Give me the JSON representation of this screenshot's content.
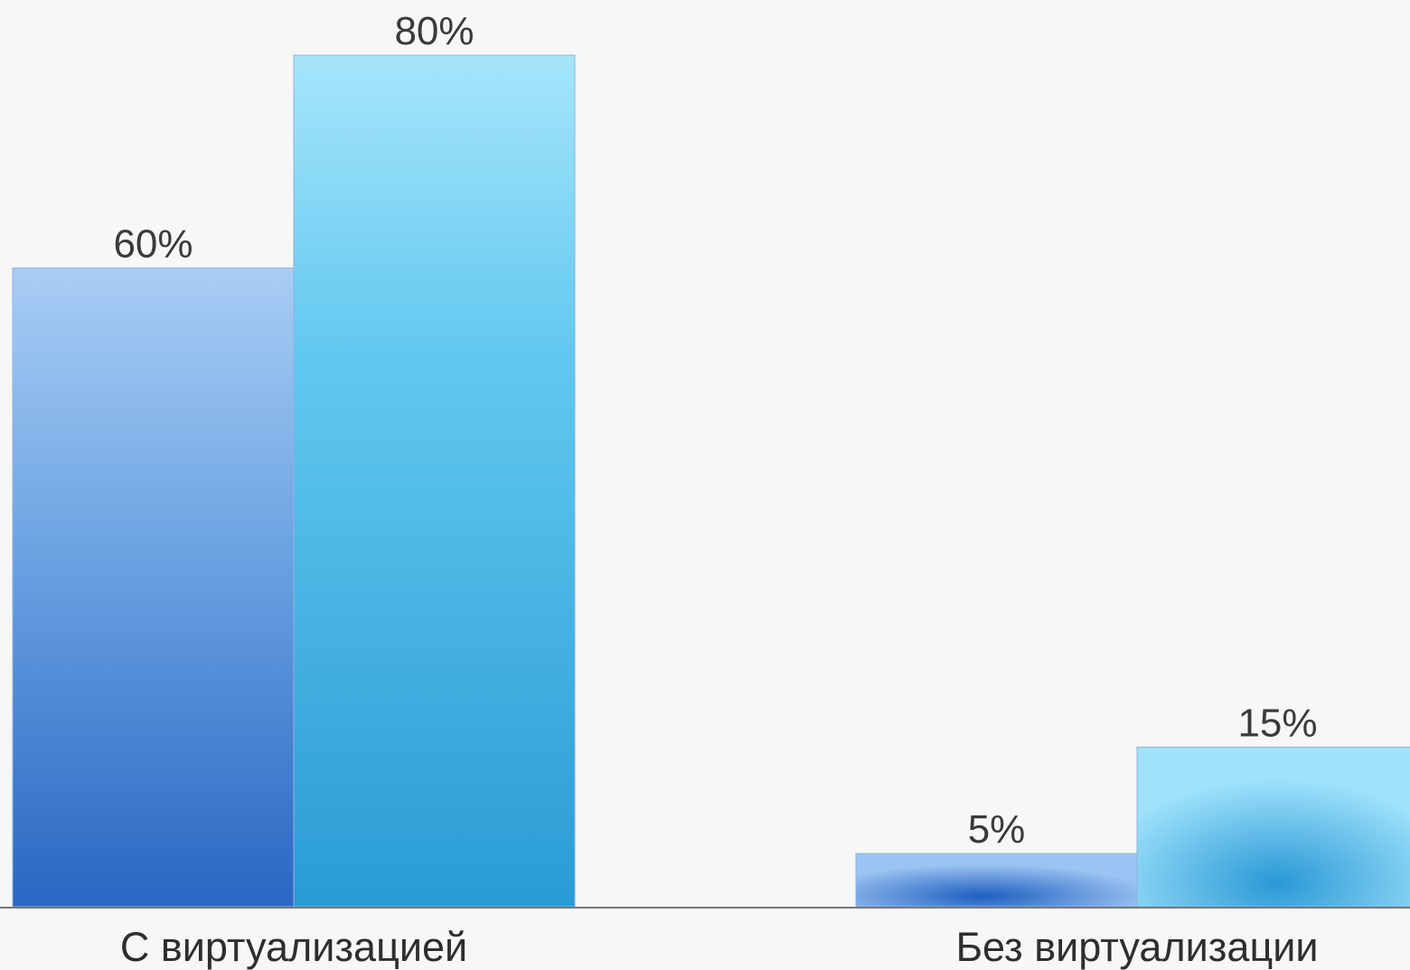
{
  "chart_data": {
    "type": "bar",
    "title": "",
    "xlabel": "",
    "ylabel": "",
    "ylim": [
      0,
      80
    ],
    "grid": false,
    "categories": [
      "С виртуализацией",
      "Без виртуализации"
    ],
    "series": [
      {
        "values": [
          60,
          5
        ],
        "color": "#3a7fd0"
      },
      {
        "values": [
          80,
          15
        ],
        "color": "#3bb0e6"
      }
    ],
    "data_labels": [
      [
        "60%",
        "5%"
      ],
      [
        "80%",
        "15%"
      ]
    ]
  }
}
